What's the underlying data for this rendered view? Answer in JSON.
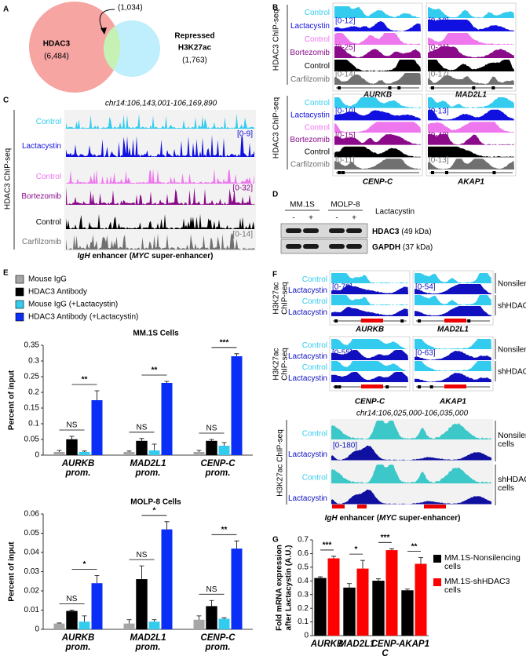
{
  "panels": {
    "A": {
      "label": "A",
      "left_label": "HDAC3",
      "left_count": "(6,484)",
      "overlap_count": "(1,034)",
      "right_label_lines": [
        "Repressed",
        "H3K27ac"
      ],
      "right_count": "(1,763)"
    },
    "B": {
      "label": "B",
      "ylabel": "HDAC3 ChIP-seq",
      "tracks": [
        "Control",
        "Lactacystin",
        "Control",
        "Bortezomib",
        "Control",
        "Carfilzomib"
      ],
      "track_colors": [
        "#33ccee",
        "#1010e0",
        "#ee77ee",
        "#8a0a8a",
        "#000000",
        "#707070"
      ],
      "top": [
        {
          "gene": "AURKB",
          "ranges": [
            "[0-12]",
            "[0-25]",
            "[0-14]"
          ]
        },
        {
          "gene": "MAD2L1",
          "ranges": [
            "[0-10]",
            "[0-21]",
            "[0-17]"
          ]
        }
      ],
      "bottom": [
        {
          "gene": "CENP-C",
          "ranges": [
            "[0-10]",
            "[0-15]",
            "[0-11]"
          ]
        },
        {
          "gene": "AKAP1",
          "ranges": [
            "[0-13]",
            "[0-48]",
            "[0-13]"
          ]
        }
      ]
    },
    "C": {
      "label": "C",
      "title": "chr14:106,143,001-106,169,890",
      "ylabel": "HDAC3 ChIP-seq",
      "tracks": [
        "Control",
        "Lactacystin",
        "Control",
        "Bortezomib",
        "Control",
        "Carfilzomib"
      ],
      "ranges": [
        "[0-9]",
        "[0-32]",
        "[0-14]"
      ],
      "caption": [
        "IgH",
        " enhancer (",
        "MYC",
        " super-enhancer)"
      ]
    },
    "D": {
      "label": "D",
      "cell_lines": [
        "MM.1S",
        "MOLP-8"
      ],
      "signs": [
        "-",
        "+",
        "-",
        "+"
      ],
      "treatment": "Lactacystin",
      "rows": [
        {
          "protein": "HDAC3",
          "size": " (49 kDa)"
        },
        {
          "protein": "GAPDH",
          "size": " (37 kDa)"
        }
      ]
    },
    "E": {
      "label": "E"
    },
    "F": {
      "label": "F",
      "ylabel_lines": [
        "H3K27ac",
        "ChIP-seq"
      ],
      "tracks": [
        "Control",
        "Lactacystin",
        "Control",
        "Lactacystin"
      ],
      "groups": [
        "Nonsilencing",
        "shHDAC3"
      ],
      "top": [
        {
          "gene": "AURKB",
          "range": "[0-79]"
        },
        {
          "gene": "MAD2L1",
          "range": "[0-54]"
        }
      ],
      "bottom": [
        {
          "gene": "CENP-C",
          "range": "[0-55]"
        },
        {
          "gene": "AKAP1",
          "range": "[0-63]"
        }
      ],
      "igh": {
        "title": "chr14:106,025,000-106,035,000",
        "ylabel": "H3K27ac ChIP-seq",
        "range": "[0-180]",
        "tracks": [
          "Control",
          "Lactacystin",
          "Control",
          "Lactacystin"
        ],
        "groups": [
          "Nonsilencing cells",
          "shHDAC3 cells"
        ],
        "caption": [
          "IgH",
          " enhancer (",
          "MYC",
          " super-enhancer)"
        ]
      }
    },
    "G": {
      "label": "G"
    }
  },
  "chart_data": [
    {
      "type": "bar",
      "title": "MM.1S Cells",
      "ylabel": "Percent of input",
      "categories": [
        "AURKB prom.",
        "MAD2L1 prom.",
        "CENP-C prom."
      ],
      "ylim": [
        0,
        0.35
      ],
      "yticks": [
        0,
        0.05,
        0.1,
        0.15,
        0.2,
        0.25,
        0.3,
        0.35
      ],
      "series": [
        {
          "name": "Mouse IgG",
          "color": "#a6a6a6",
          "values": [
            0.01,
            0.01,
            0.01
          ],
          "errors": [
            0.005,
            0.003,
            0.005
          ]
        },
        {
          "name": "HDAC3 Antibody",
          "color": "#000000",
          "values": [
            0.05,
            0.045,
            0.045
          ],
          "errors": [
            0.01,
            0.008,
            0.005
          ]
        },
        {
          "name": "Mouse IgG (+Lactacystin)",
          "color": "#33ccee",
          "values": [
            0.01,
            0.015,
            0.03
          ],
          "errors": [
            0.003,
            0.02,
            0.01
          ]
        },
        {
          "name": "HDAC3 Antibody (+Lactacystin)",
          "color": "#0a2ef5",
          "values": [
            0.175,
            0.23,
            0.315
          ],
          "errors": [
            0.03,
            0.005,
            0.008
          ]
        }
      ],
      "brackets_low": [
        "NS",
        "NS",
        "NS"
      ],
      "brackets_high": [
        "**",
        "**",
        "***"
      ]
    },
    {
      "type": "bar",
      "title": "MOLP-8 Cells",
      "ylabel": "Percent of input",
      "categories": [
        "AURKB prom.",
        "MAD2L1 prom.",
        "CENP-C prom."
      ],
      "ylim": [
        0,
        0.06
      ],
      "yticks": [
        0,
        0.01,
        0.02,
        0.03,
        0.04,
        0.05,
        0.06
      ],
      "series": [
        {
          "color": "#a6a6a6",
          "values": [
            0.003,
            0.003,
            0.005
          ],
          "errors": [
            0.0003,
            0.002,
            0.002
          ]
        },
        {
          "color": "#000000",
          "values": [
            0.0095,
            0.026,
            0.012
          ],
          "errors": [
            0.0005,
            0.007,
            0.003
          ]
        },
        {
          "color": "#33ccee",
          "values": [
            0.004,
            0.004,
            0.0055
          ],
          "errors": [
            0.003,
            0.001,
            0.0005
          ]
        },
        {
          "color": "#0a2ef5",
          "values": [
            0.024,
            0.052,
            0.042
          ],
          "errors": [
            0.004,
            0.004,
            0.004
          ]
        }
      ],
      "brackets_low": [
        "NS",
        "NS",
        "NS"
      ],
      "brackets_high": [
        "*",
        "*",
        "**"
      ]
    },
    {
      "type": "bar",
      "ylabel": [
        "Fold mRNA expression",
        "after Lactacystin (A.U.)"
      ],
      "categories": [
        "AURKB",
        "MAD2L1",
        "CENP-C",
        "AKAP1"
      ],
      "ylim": [
        0,
        0.7
      ],
      "yticks": [
        0,
        0.1,
        0.2,
        0.3,
        0.4,
        0.5,
        0.6,
        0.7
      ],
      "series": [
        {
          "name": "MM.1S-Nonsilencing cells",
          "color": "#000000",
          "values": [
            0.42,
            0.35,
            0.4,
            0.33
          ],
          "errors": [
            0.01,
            0.03,
            0.015,
            0.01
          ]
        },
        {
          "name": "MM.1S-shHDAC3 cells",
          "color": "#ff0000",
          "values": [
            0.565,
            0.49,
            0.625,
            0.525
          ],
          "errors": [
            0.015,
            0.06,
            0.01,
            0.045
          ]
        }
      ],
      "significance": [
        "***",
        "*",
        "***",
        "**"
      ]
    }
  ]
}
